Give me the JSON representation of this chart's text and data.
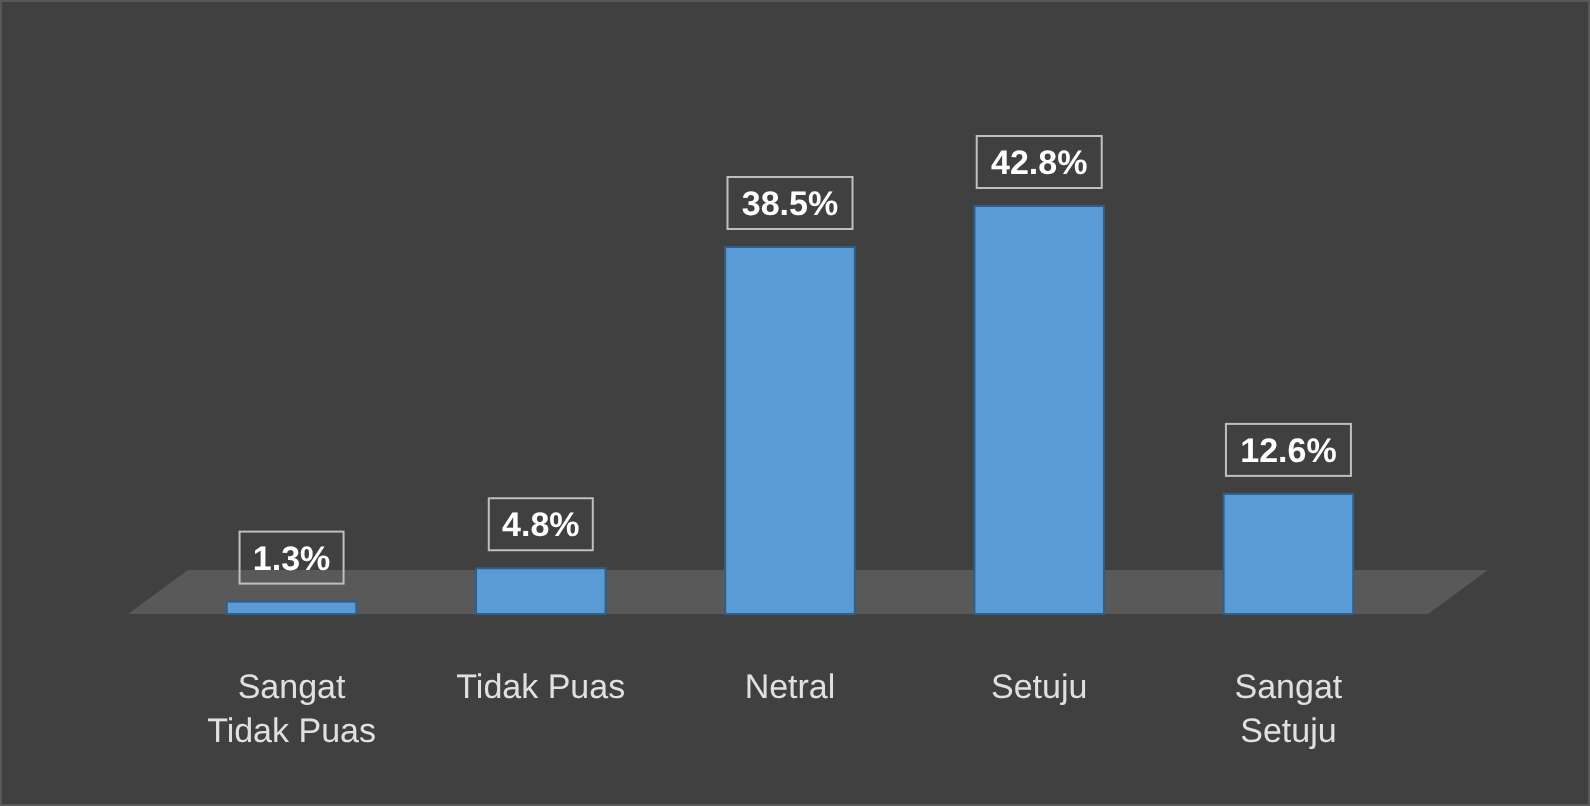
{
  "chart_data": {
    "type": "bar",
    "categories": [
      "Sangat Tidak Puas",
      "Tidak Puas",
      "Netral",
      "Setuju",
      "Sangat Setuju"
    ],
    "values": [
      1.3,
      4.8,
      38.5,
      42.8,
      12.6
    ],
    "value_labels": [
      "1.3%",
      "4.8%",
      "38.5%",
      "42.8%",
      "12.6%"
    ],
    "color": "#5b9bd5",
    "grid": false
  }
}
